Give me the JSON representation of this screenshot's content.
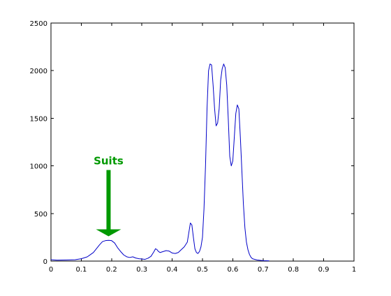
{
  "chart_data": {
    "type": "line",
    "title": "",
    "xlabel": "",
    "ylabel": "",
    "xlim": [
      0,
      1
    ],
    "ylim": [
      0,
      2500
    ],
    "x_ticks": [
      "0",
      "0.1",
      "0.2",
      "0.3",
      "0.4",
      "0.5",
      "0.6",
      "0.7",
      "0.8",
      "0.9",
      "1"
    ],
    "y_ticks": [
      "0",
      "500",
      "1000",
      "1500",
      "2000",
      "2500"
    ],
    "grid": false,
    "series": [
      {
        "name": "",
        "color": "#0000c8",
        "x": [
          0.0,
          0.02,
          0.05,
          0.08,
          0.1,
          0.12,
          0.14,
          0.16,
          0.17,
          0.18,
          0.19,
          0.2,
          0.21,
          0.22,
          0.23,
          0.24,
          0.25,
          0.26,
          0.27,
          0.28,
          0.29,
          0.3,
          0.31,
          0.32,
          0.33,
          0.34,
          0.345,
          0.35,
          0.355,
          0.36,
          0.37,
          0.38,
          0.39,
          0.4,
          0.41,
          0.42,
          0.43,
          0.44,
          0.45,
          0.455,
          0.46,
          0.465,
          0.47,
          0.475,
          0.48,
          0.485,
          0.49,
          0.495,
          0.5,
          0.505,
          0.51,
          0.515,
          0.52,
          0.525,
          0.53,
          0.535,
          0.54,
          0.545,
          0.55,
          0.555,
          0.56,
          0.565,
          0.57,
          0.575,
          0.58,
          0.585,
          0.59,
          0.595,
          0.6,
          0.605,
          0.61,
          0.615,
          0.62,
          0.625,
          0.63,
          0.635,
          0.64,
          0.645,
          0.65,
          0.655,
          0.66,
          0.665,
          0.67,
          0.68,
          0.69,
          0.7,
          0.72
        ],
        "y": [
          15,
          10,
          12,
          15,
          25,
          45,
          90,
          170,
          205,
          215,
          218,
          215,
          190,
          140,
          100,
          65,
          45,
          38,
          45,
          32,
          25,
          22,
          18,
          30,
          50,
          100,
          130,
          120,
          100,
          90,
          100,
          110,
          105,
          85,
          80,
          90,
          120,
          150,
          200,
          300,
          400,
          380,
          250,
          130,
          90,
          80,
          100,
          150,
          250,
          550,
          1000,
          1600,
          2000,
          2070,
          2060,
          1850,
          1600,
          1420,
          1450,
          1600,
          1900,
          2020,
          2070,
          2030,
          1850,
          1500,
          1100,
          1000,
          1050,
          1300,
          1550,
          1640,
          1600,
          1300,
          950,
          600,
          350,
          200,
          120,
          70,
          40,
          25,
          20,
          12,
          8,
          5,
          3
        ]
      }
    ],
    "annotations": [
      {
        "text": "Suits",
        "color": "#009900",
        "arrow_to": {
          "x": 0.19,
          "y": 260
        }
      }
    ]
  }
}
